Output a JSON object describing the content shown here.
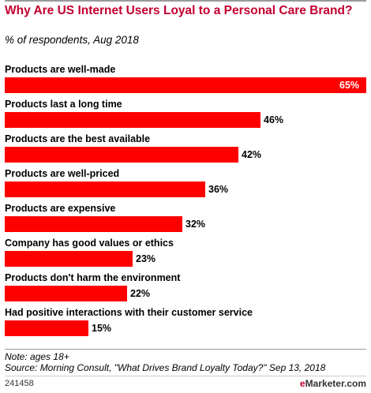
{
  "header": {
    "title": "Why Are US Internet Users Loyal to a Personal Care Brand?",
    "subtitle": "% of respondents, Aug 2018"
  },
  "colors": {
    "bar": "#ff0000",
    "title": "#c2002f"
  },
  "chart_data": {
    "type": "bar",
    "orientation": "horizontal",
    "categories": [
      "Products are well-made",
      "Products last a long time",
      "Products are the best available",
      "Products are well-priced",
      "Products are expensive",
      "Company has good values or ethics",
      "Products don't harm the environment",
      "Had positive interactions with their customer service"
    ],
    "values": [
      65,
      46,
      42,
      36,
      32,
      23,
      22,
      15
    ],
    "value_labels": [
      "65%",
      "46%",
      "42%",
      "36%",
      "32%",
      "23%",
      "22%",
      "15%"
    ],
    "xlim": [
      0,
      65
    ],
    "grid": false,
    "legend": "none"
  },
  "footer": {
    "note": "Note: ages 18+",
    "source": "Source: Morning Consult, \"What Drives Brand Loyalty Today?\" Sep 13, 2018",
    "chart_id": "241458",
    "brand_e": "e",
    "brand_rest": "Marketer",
    "brand_suffix": ".com"
  }
}
